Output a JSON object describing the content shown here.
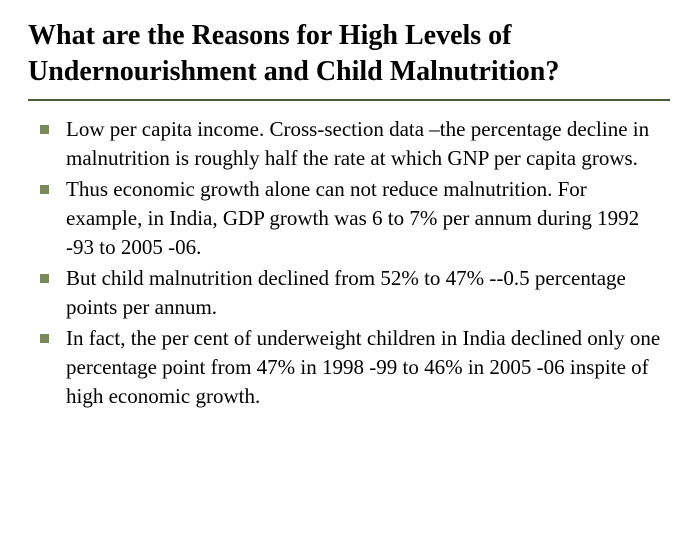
{
  "slide": {
    "title": "What are the Reasons for High Levels of Undernourishment and Child Malnutrition?",
    "rule_color": "#4a5a3a",
    "bullet_color": "#7a8a5a",
    "bullets": [
      "Low per capita income. Cross-section data –the percentage decline in malnutrition is roughly half the rate at which GNP per capita grows.",
      "Thus economic growth alone can not reduce malnutrition. For example, in India, GDP growth was 6 to 7% per annum during 1992 -93 to 2005 -06.",
      "But child malnutrition declined from 52% to 47% --0.5 percentage points per annum.",
      "In fact, the per cent of underweight children in India declined only one percentage point from 47% in 1998 -99 to 46% in 2005 -06 inspite of high economic growth."
    ]
  }
}
